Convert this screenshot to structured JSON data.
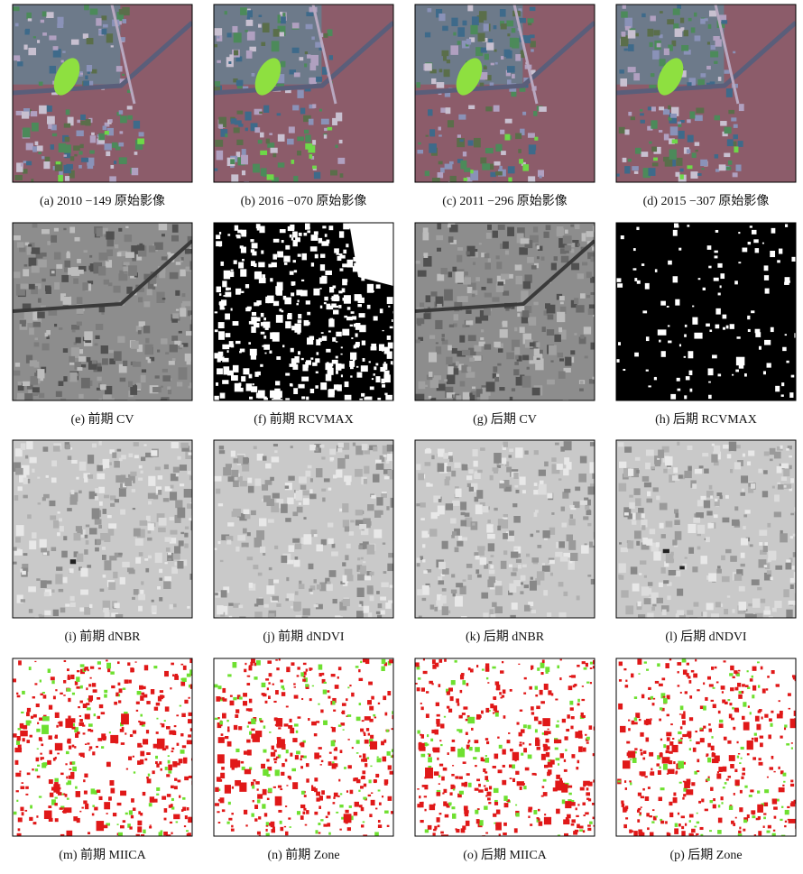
{
  "figure": {
    "panels": [
      {
        "caption": "(a) 2010 −149 原始影像"
      },
      {
        "caption": "(b) 2016 −070 原始影像"
      },
      {
        "caption": "(c) 2011 −296 原始影像"
      },
      {
        "caption": "(d) 2015 −307 原始影像"
      },
      {
        "caption": "(e) 前期 CV"
      },
      {
        "caption": "(f) 前期 RCVMAX"
      },
      {
        "caption": "(g) 后期 CV"
      },
      {
        "caption": "(h) 后期 RCVMAX"
      },
      {
        "caption": "(i) 前期 dNBR"
      },
      {
        "caption": "(j) 前期 dNDVI"
      },
      {
        "caption": "(k) 后期 dNBR"
      },
      {
        "caption": "(l) 后期 dNDVI"
      },
      {
        "caption": "(m) 前期 MIICA"
      },
      {
        "caption": "(n) 前期 Zone"
      },
      {
        "caption": "(o) 后期 MIICA"
      },
      {
        "caption": "(p) 后期 Zone"
      }
    ]
  }
}
